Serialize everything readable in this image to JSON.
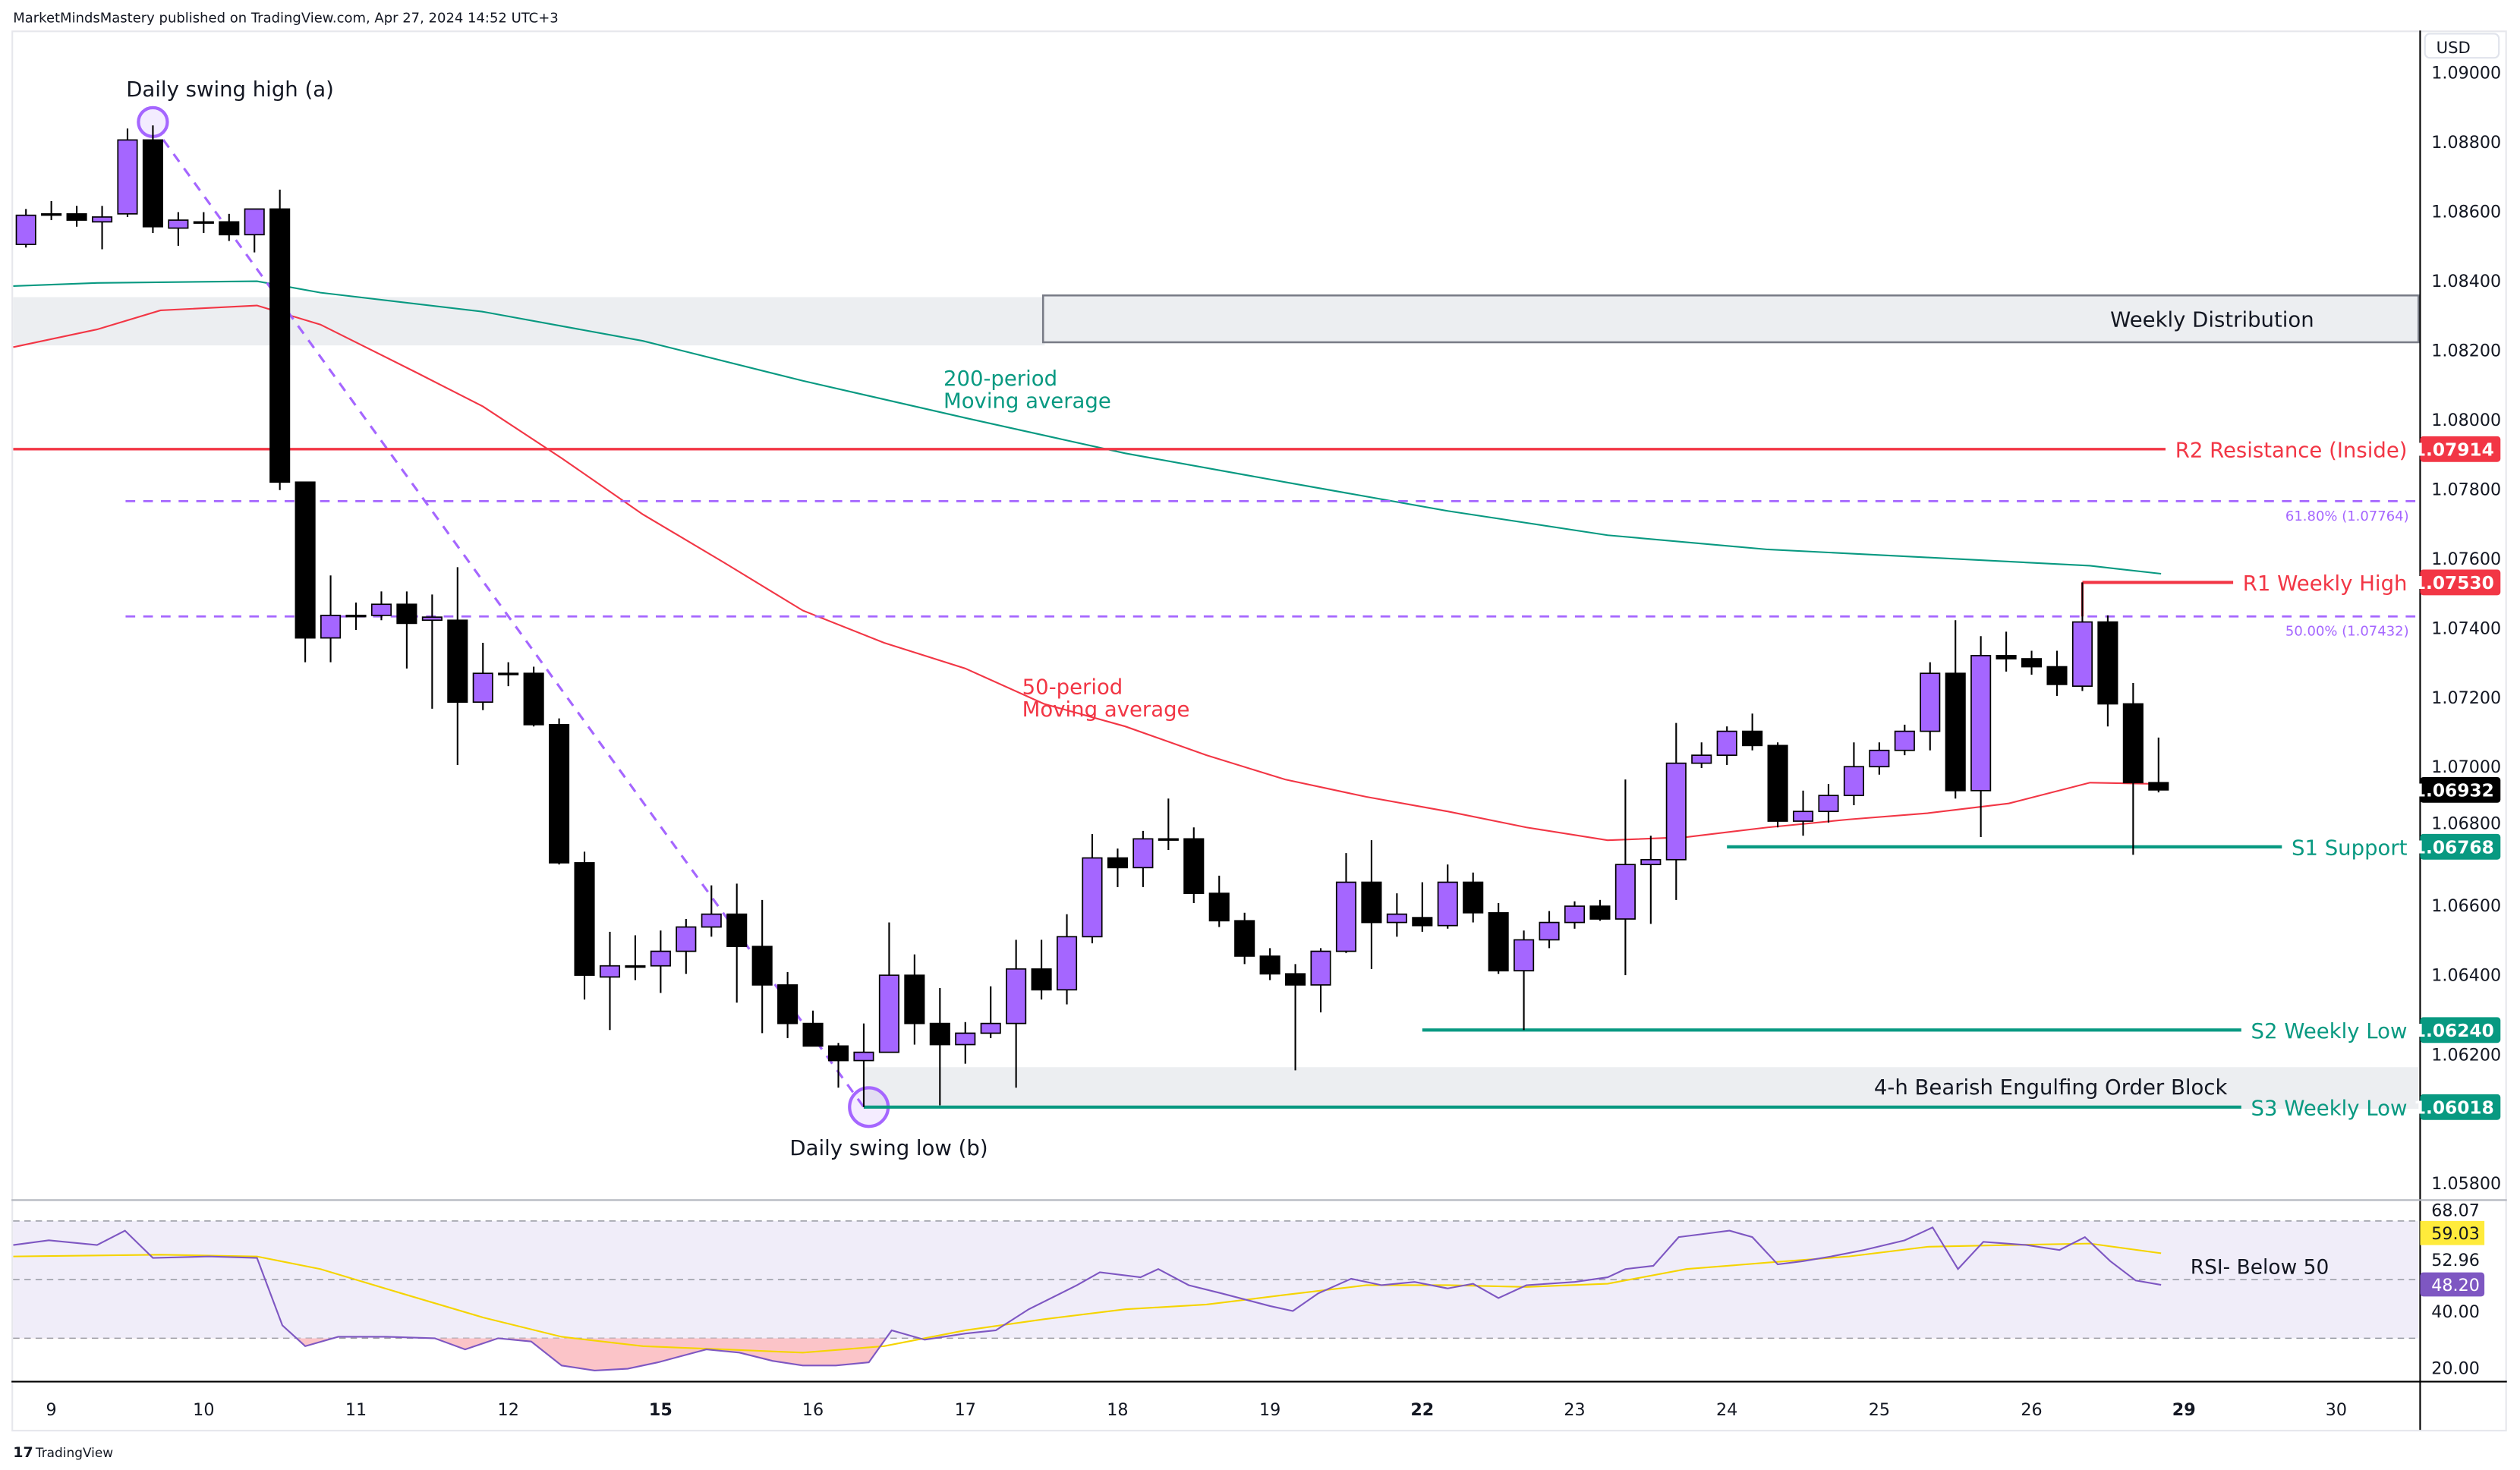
{
  "header": {
    "published": "MarketMindsMastery published on TradingView.com, Apr 27, 2024 14:52 UTC+3"
  },
  "footer": {
    "logo_text": "TradingView"
  },
  "colors": {
    "bull": "#a566ff",
    "bear": "#000000",
    "ma200": "#089981",
    "ma50": "#f23645",
    "fib": "#a566ff",
    "support": "#089981",
    "resistance": "#f23645",
    "rsi": "#7e57c2",
    "rsi_ma": "#f5d400",
    "last_price": "#000000"
  },
  "price_axis": {
    "currency": "USD",
    "ticks": [
      "1.09000",
      "1.08800",
      "1.08600",
      "1.08400",
      "1.08200",
      "1.08000",
      "1.07800",
      "1.07600",
      "1.07400",
      "1.07200",
      "1.07000",
      "1.06800",
      "1.06600",
      "1.06400",
      "1.06200",
      "1.05800"
    ],
    "last_price": "1.06932"
  },
  "chart_data": {
    "type": "candlestick",
    "symbol_timeframe": "4h",
    "x_labels": [
      {
        "label": "9",
        "bold": false
      },
      {
        "label": "10",
        "bold": false
      },
      {
        "label": "11",
        "bold": false
      },
      {
        "label": "12",
        "bold": false
      },
      {
        "label": "15",
        "bold": true
      },
      {
        "label": "16",
        "bold": false
      },
      {
        "label": "17",
        "bold": false
      },
      {
        "label": "18",
        "bold": false
      },
      {
        "label": "19",
        "bold": false
      },
      {
        "label": "22",
        "bold": true
      },
      {
        "label": "23",
        "bold": false
      },
      {
        "label": "24",
        "bold": false
      },
      {
        "label": "25",
        "bold": false
      },
      {
        "label": "26",
        "bold": false
      },
      {
        "label": "29",
        "bold": true
      },
      {
        "label": "30",
        "bold": false
      }
    ],
    "ylim": [
      1.0575,
      1.091
    ],
    "candles": [
      [
        1.08504,
        1.08606,
        1.08495,
        1.08588
      ],
      [
        1.08592,
        1.08629,
        1.08574,
        1.0859
      ],
      [
        1.08592,
        1.08615,
        1.08555,
        1.08574
      ],
      [
        1.08569,
        1.08615,
        1.0849,
        1.08583
      ],
      [
        1.08592,
        1.08838,
        1.08583,
        1.08805
      ],
      [
        1.08805,
        1.08847,
        1.08537,
        1.08555
      ],
      [
        1.08551,
        1.08597,
        1.085,
        1.08574
      ],
      [
        1.08569,
        1.08597,
        1.08537,
        1.08567
      ],
      [
        1.08569,
        1.08592,
        1.08514,
        1.08532
      ],
      [
        1.08532,
        1.08606,
        1.08481,
        1.08606
      ],
      [
        1.08606,
        1.08662,
        1.07796,
        1.07819
      ],
      [
        1.07819,
        1.07819,
        1.073,
        1.0737
      ],
      [
        1.0737,
        1.0755,
        1.073,
        1.07435
      ],
      [
        1.07435,
        1.07472,
        1.07393,
        1.07433
      ],
      [
        1.07435,
        1.07504,
        1.07421,
        1.07467
      ],
      [
        1.07467,
        1.07504,
        1.07282,
        1.07412
      ],
      [
        1.07421,
        1.07495,
        1.07166,
        1.0743
      ],
      [
        1.07421,
        1.07574,
        1.07004,
        1.07185
      ],
      [
        1.07185,
        1.07356,
        1.07162,
        1.07268
      ],
      [
        1.07268,
        1.073,
        1.07231,
        1.07266
      ],
      [
        1.07268,
        1.07287,
        1.07115,
        1.0712
      ],
      [
        1.0712,
        1.07138,
        1.06717,
        1.06722
      ],
      [
        1.06722,
        1.06754,
        1.06328,
        1.06398
      ],
      [
        1.06393,
        1.06523,
        1.0624,
        1.06425
      ],
      [
        1.06425,
        1.06513,
        1.06384,
        1.06423
      ],
      [
        1.06425,
        1.06527,
        1.06347,
        1.06467
      ],
      [
        1.06467,
        1.0656,
        1.06402,
        1.06537
      ],
      [
        1.06537,
        1.06657,
        1.06509,
        1.06574
      ],
      [
        1.06574,
        1.06662,
        1.06319,
        1.06481
      ],
      [
        1.06481,
        1.06615,
        1.06231,
        1.0637
      ],
      [
        1.0637,
        1.06407,
        1.06217,
        1.06259
      ],
      [
        1.06259,
        1.06296,
        1.06194,
        1.06194
      ],
      [
        1.06194,
        1.06203,
        1.06074,
        1.06152
      ],
      [
        1.06152,
        1.06259,
        1.06018,
        1.06176
      ],
      [
        1.06176,
        1.0655,
        1.06176,
        1.06398
      ],
      [
        1.06398,
        1.06458,
        1.06198,
        1.06259
      ],
      [
        1.06259,
        1.06361,
        1.06023,
        1.06198
      ],
      [
        1.06198,
        1.06263,
        1.06143,
        1.06231
      ],
      [
        1.06231,
        1.06366,
        1.06217,
        1.06259
      ],
      [
        1.06259,
        1.065,
        1.06074,
        1.06416
      ],
      [
        1.06416,
        1.065,
        1.06328,
        1.06356
      ],
      [
        1.06356,
        1.06574,
        1.06314,
        1.06509
      ],
      [
        1.06509,
        1.06805,
        1.0649,
        1.06736
      ],
      [
        1.06736,
        1.06763,
        1.06652,
        1.06708
      ],
      [
        1.06708,
        1.06814,
        1.06652,
        1.06791
      ],
      [
        1.06791,
        1.06907,
        1.06759,
        1.06789
      ],
      [
        1.06791,
        1.06824,
        1.06606,
        1.06634
      ],
      [
        1.06634,
        1.06685,
        1.06537,
        1.06555
      ],
      [
        1.06555,
        1.06578,
        1.0643,
        1.06453
      ],
      [
        1.06453,
        1.06476,
        1.06384,
        1.06402
      ],
      [
        1.06402,
        1.0643,
        1.06124,
        1.0637
      ],
      [
        1.0637,
        1.06476,
        1.06291,
        1.06467
      ],
      [
        1.06467,
        1.0675,
        1.06462,
        1.06666
      ],
      [
        1.06666,
        1.06787,
        1.06416,
        1.0655
      ],
      [
        1.0655,
        1.06634,
        1.06509,
        1.06574
      ],
      [
        1.06564,
        1.06666,
        1.06523,
        1.06541
      ],
      [
        1.06541,
        1.06717,
        1.06532,
        1.06666
      ],
      [
        1.06666,
        1.06694,
        1.0655,
        1.06578
      ],
      [
        1.06578,
        1.06606,
        1.06402,
        1.06411
      ],
      [
        1.06411,
        1.06527,
        1.0624,
        1.065
      ],
      [
        1.065,
        1.06583,
        1.06476,
        1.0655
      ],
      [
        1.0655,
        1.06611,
        1.06532,
        1.06597
      ],
      [
        1.06597,
        1.06615,
        1.06555,
        1.0656
      ],
      [
        1.0656,
        1.06962,
        1.06398,
        1.06717
      ],
      [
        1.06717,
        1.068,
        1.06546,
        1.06731
      ],
      [
        1.06731,
        1.07125,
        1.06615,
        1.07009
      ],
      [
        1.07009,
        1.07069,
        1.06995,
        1.07032
      ],
      [
        1.07032,
        1.07115,
        1.07004,
        1.07101
      ],
      [
        1.07101,
        1.07152,
        1.07046,
        1.0706
      ],
      [
        1.0706,
        1.07069,
        1.06824,
        1.06842
      ],
      [
        1.06842,
        1.0693,
        1.068,
        1.0687
      ],
      [
        1.0687,
        1.06949,
        1.06838,
        1.06916
      ],
      [
        1.06916,
        1.07069,
        1.06888,
        1.06999
      ],
      [
        1.06999,
        1.07069,
        1.06976,
        1.07046
      ],
      [
        1.07046,
        1.0712,
        1.07032,
        1.07101
      ],
      [
        1.07101,
        1.073,
        1.07046,
        1.07268
      ],
      [
        1.07268,
        1.07421,
        1.06907,
        1.0693
      ],
      [
        1.0693,
        1.07375,
        1.06796,
        1.07319
      ],
      [
        1.07319,
        1.07388,
        1.07273,
        1.0731
      ],
      [
        1.0731,
        1.07333,
        1.07264,
        1.07287
      ],
      [
        1.07287,
        1.07333,
        1.07203,
        1.07236
      ],
      [
        1.07231,
        1.0753,
        1.07217,
        1.07416
      ],
      [
        1.07416,
        1.07435,
        1.07115,
        1.0718
      ],
      [
        1.0718,
        1.0724,
        1.06745,
        1.06953
      ],
      [
        1.06953,
        1.07083,
        1.06925,
        1.06932
      ]
    ],
    "ma200": {
      "label_line1": "200-period",
      "label_line2": "Moving average",
      "points": [
        [
          -0.5,
          1.08384
        ],
        [
          2.8,
          1.08393
        ],
        [
          9.1,
          1.08398
        ],
        [
          11.6,
          1.08365
        ],
        [
          18,
          1.0831
        ],
        [
          24.3,
          1.08226
        ],
        [
          30.6,
          1.08111
        ],
        [
          37,
          1.08004
        ],
        [
          43.3,
          1.07902
        ],
        [
          49.6,
          1.07819
        ],
        [
          56,
          1.07736
        ],
        [
          62.3,
          1.07666
        ],
        [
          68.6,
          1.07625
        ],
        [
          74.9,
          1.07602
        ],
        [
          81.3,
          1.07578
        ],
        [
          84.1,
          1.07555
        ]
      ]
    },
    "ma50": {
      "label_line1": "50-period",
      "label_line2": "Moving average",
      "points": [
        [
          -0.5,
          1.08208
        ],
        [
          2.8,
          1.08259
        ],
        [
          5.3,
          1.08314
        ],
        [
          9.1,
          1.08328
        ],
        [
          11.6,
          1.08273
        ],
        [
          15.4,
          1.08134
        ],
        [
          18,
          1.08037
        ],
        [
          21.1,
          1.07888
        ],
        [
          24.3,
          1.07726
        ],
        [
          27.5,
          1.07587
        ],
        [
          30.6,
          1.07449
        ],
        [
          33.8,
          1.07356
        ],
        [
          37,
          1.07282
        ],
        [
          40.1,
          1.0718
        ],
        [
          43.3,
          1.07115
        ],
        [
          46.5,
          1.07032
        ],
        [
          49.6,
          1.06962
        ],
        [
          52.8,
          1.06912
        ],
        [
          56,
          1.0687
        ],
        [
          59.1,
          1.06824
        ],
        [
          62.3,
          1.06787
        ],
        [
          65.4,
          1.06796
        ],
        [
          68.6,
          1.06824
        ],
        [
          71.8,
          1.06847
        ],
        [
          74.9,
          1.06865
        ],
        [
          78.1,
          1.06893
        ],
        [
          81.3,
          1.06953
        ],
        [
          84.1,
          1.06949
        ]
      ]
    },
    "levels": [
      {
        "name": "r2",
        "label": "R2 Resistance (Inside)",
        "price": 1.07914,
        "price_label": "1.07914",
        "kind": "resistance",
        "start": -0.5
      },
      {
        "name": "r1",
        "label": "R1 Weekly High",
        "price": 1.0753,
        "price_label": "1.07530",
        "kind": "resistance",
        "start": 81
      },
      {
        "name": "s1",
        "label": "S1 Support",
        "price": 1.06768,
        "price_label": "1.06768",
        "kind": "support",
        "start": 67
      },
      {
        "name": "s2",
        "label": "S2 Weekly Low",
        "price": 1.0624,
        "price_label": "1.06240",
        "kind": "support",
        "start": 55
      },
      {
        "name": "s3",
        "label": "S3 Weekly Low",
        "price": 1.06018,
        "price_label": "1.06018",
        "kind": "support",
        "start": 33
      }
    ],
    "fib": {
      "from": [
        5,
        1.08847
      ],
      "to": [
        33,
        1.06018
      ],
      "levels": [
        {
          "label": "61.80% (1.07764)",
          "price": 1.07764
        },
        {
          "label": "50.00% (1.07432)",
          "price": 1.07432
        }
      ]
    },
    "zones": [
      {
        "name": "weekly-distribution",
        "label": "Weekly Distribution",
        "top": 1.08357,
        "bottom": 1.08222,
        "start": 40,
        "shaded_top": 1.08352,
        "shaded_bottom": 1.08213
      },
      {
        "name": "order-block",
        "label": "4-h Bearish Engulfing Order Block",
        "top": 1.06133,
        "bottom": 1.06013,
        "start": 33
      }
    ],
    "annotations": {
      "swing_high": "Daily swing high (a)",
      "swing_low": "Daily swing low (b)"
    },
    "rsi": {
      "label": "RSI- Below 50",
      "axis_labels": [
        "68.07",
        "52.96",
        "40.00",
        "20.00"
      ],
      "value_label": "48.20",
      "ma_label": "59.03",
      "upper": 70,
      "middle": 50,
      "lower": 30,
      "line": [
        [
          -0.5,
          61.8
        ],
        [
          0.9,
          63.4
        ],
        [
          2.8,
          61.8
        ],
        [
          3.9,
          66.7
        ],
        [
          5,
          57.4
        ],
        [
          7.2,
          57.9
        ],
        [
          9.1,
          57.4
        ],
        [
          10.1,
          34.4
        ],
        [
          11,
          27.3
        ],
        [
          12.3,
          30.5
        ],
        [
          14.2,
          30.5
        ],
        [
          16.1,
          30
        ],
        [
          17.3,
          26.2
        ],
        [
          18.6,
          30
        ],
        [
          19.9,
          28.9
        ],
        [
          21.1,
          20.7
        ],
        [
          22.4,
          19
        ],
        [
          23.7,
          19.6
        ],
        [
          24.9,
          21.8
        ],
        [
          26.8,
          26.2
        ],
        [
          28.1,
          25.1
        ],
        [
          29.4,
          22.3
        ],
        [
          30.6,
          20.7
        ],
        [
          31.9,
          20.7
        ],
        [
          33.2,
          21.8
        ],
        [
          34.1,
          32.7
        ],
        [
          35.4,
          29.5
        ],
        [
          37,
          31.6
        ],
        [
          38.2,
          32.7
        ],
        [
          39.5,
          39.9
        ],
        [
          41.4,
          48.1
        ],
        [
          42.3,
          52.5
        ],
        [
          43.9,
          50.8
        ],
        [
          44.6,
          53.6
        ],
        [
          45.8,
          48.1
        ],
        [
          47.1,
          45.3
        ],
        [
          49,
          41
        ],
        [
          49.9,
          39.3
        ],
        [
          50.9,
          45.3
        ],
        [
          52.2,
          50.3
        ],
        [
          53.4,
          48.1
        ],
        [
          54.7,
          49.2
        ],
        [
          56,
          47
        ],
        [
          57,
          48.6
        ],
        [
          58,
          43.7
        ],
        [
          59.1,
          48.1
        ],
        [
          61,
          49.2
        ],
        [
          62.3,
          50.8
        ],
        [
          63,
          53.6
        ],
        [
          64.1,
          54.7
        ],
        [
          65.1,
          64.5
        ],
        [
          66.1,
          65.6
        ],
        [
          67.1,
          66.7
        ],
        [
          68,
          64.5
        ],
        [
          69,
          55.2
        ],
        [
          70,
          56.3
        ],
        [
          71.1,
          57.9
        ],
        [
          72.4,
          60.1
        ],
        [
          74,
          63.4
        ],
        [
          75.1,
          67.8
        ],
        [
          76.1,
          53.6
        ],
        [
          77.1,
          62.9
        ],
        [
          78.8,
          61.8
        ],
        [
          80.1,
          60.1
        ],
        [
          81.1,
          64.5
        ],
        [
          82.1,
          56.3
        ],
        [
          83.1,
          49.7
        ],
        [
          84.1,
          48.2
        ]
      ],
      "ma": [
        [
          -0.5,
          57.9
        ],
        [
          5.3,
          58.5
        ],
        [
          9.1,
          57.9
        ],
        [
          11.6,
          53.6
        ],
        [
          14.8,
          45.3
        ],
        [
          18,
          37.1
        ],
        [
          21.1,
          30.5
        ],
        [
          24.3,
          27.3
        ],
        [
          27.5,
          26.2
        ],
        [
          30.6,
          25.1
        ],
        [
          33.8,
          27.3
        ],
        [
          37,
          32.7
        ],
        [
          40.1,
          36.5
        ],
        [
          43.3,
          39.9
        ],
        [
          46.5,
          41.5
        ],
        [
          49.6,
          44.8
        ],
        [
          52.8,
          48.1
        ],
        [
          56,
          48.1
        ],
        [
          59.1,
          47.5
        ],
        [
          62.3,
          48.6
        ],
        [
          65.4,
          53.6
        ],
        [
          68.6,
          55.8
        ],
        [
          71.8,
          57.9
        ],
        [
          74.9,
          61.2
        ],
        [
          78.1,
          61.8
        ],
        [
          81.3,
          62.3
        ],
        [
          84.1,
          59.0
        ]
      ]
    }
  }
}
